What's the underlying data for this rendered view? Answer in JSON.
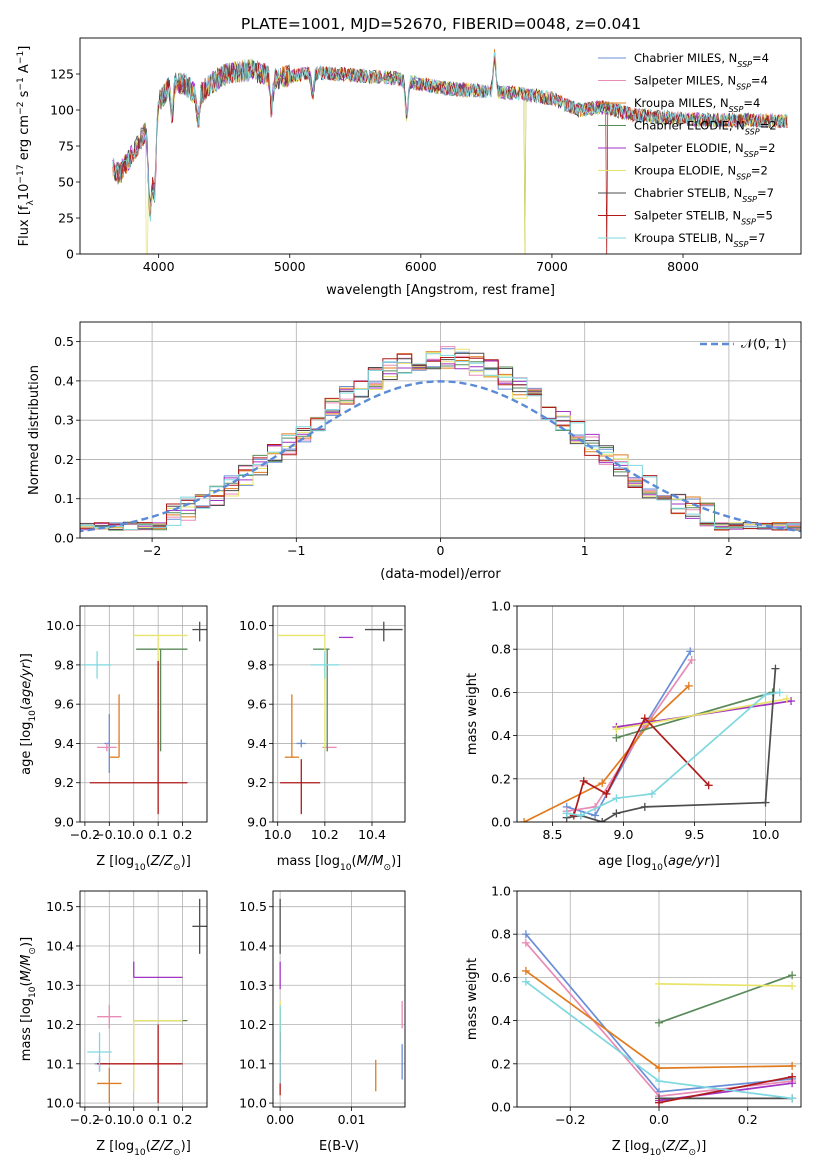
{
  "figure_title": "PLATE=1001, MJD=52670, FIBERID=0048, z=0.041",
  "series_names": [
    "Chabrier MILES, N_SSP=4",
    "Salpeter MILES, N_SSP=4",
    "Kroupa MILES, N_SSP=4",
    "Chabrier ELODIE, N_SSP=2",
    "Salpeter ELODIE, N_SSP=2",
    "Kroupa ELODIE, N_SSP=2",
    "Chabrier STELIB, N_SSP=7",
    "Salpeter STELIB, N_SSP=5",
    "Kroupa STELIB, N_SSP=7"
  ],
  "legend": {
    "spectrum": [
      {
        "prefix": "Chabrier MILES, N",
        "sub": "SSP",
        "suffix": "=4",
        "color": "#6a8fd6"
      },
      {
        "prefix": "Salpeter MILES, N",
        "sub": "SSP",
        "suffix": "=4",
        "color": "#e88bb6"
      },
      {
        "prefix": "Kroupa MILES, N",
        "sub": "SSP",
        "suffix": "=4",
        "color": "#e07b1f"
      },
      {
        "prefix": "Chabrier ELODIE, N",
        "sub": "SSP",
        "suffix": "=2",
        "color": "#5a8a5a"
      },
      {
        "prefix": "Salpeter ELODIE, N",
        "sub": "SSP",
        "suffix": "=2",
        "color": "#a233c4"
      },
      {
        "prefix": "Kroupa ELODIE, N",
        "sub": "SSP",
        "suffix": "=2",
        "color": "#e8e36a"
      },
      {
        "prefix": "Chabrier STELIB, N",
        "sub": "SSP",
        "suffix": "=7",
        "color": "#4d4d4d"
      },
      {
        "prefix": "Salpeter STELIB, N",
        "sub": "SSP",
        "suffix": "=5",
        "color": "#b01a1a"
      },
      {
        "prefix": "Kroupa STELIB, N",
        "sub": "SSP",
        "suffix": "=7",
        "color": "#7fd8df"
      }
    ],
    "histogram": "𝒩(0, 1)"
  },
  "colors": [
    "#6a8fd6",
    "#e88bb6",
    "#e07b1f",
    "#5a8a5a",
    "#a233c4",
    "#e8e36a",
    "#4d4d4d",
    "#b01a1a",
    "#7fd8df"
  ],
  "chart_data": [
    {
      "id": "spectrum",
      "type": "line",
      "xlabel": "wavelength [Angstrom, rest frame]",
      "ylabel": "Flux [f_λ 10^-17 erg cm^-2 s^-1 A^-1]",
      "xlim": [
        3400,
        8900
      ],
      "ylim": [
        0,
        150
      ],
      "xticks": [
        4000,
        5000,
        6000,
        7000,
        8000
      ],
      "yticks": [
        0,
        25,
        50,
        75,
        100,
        125
      ],
      "grid": false,
      "continuum_x": [
        3650,
        3700,
        3800,
        3900,
        3950,
        4000,
        4100,
        4200,
        4300,
        4400,
        4500,
        4700,
        4900,
        5200,
        5500,
        5800,
        6000,
        6200,
        6500,
        6800,
        7000,
        7200,
        7400,
        7600,
        7800,
        8000,
        8200,
        8500,
        8800
      ],
      "continuum_y": [
        60,
        55,
        70,
        85,
        60,
        105,
        120,
        118,
        110,
        118,
        125,
        128,
        122,
        126,
        124,
        122,
        118,
        115,
        113,
        111,
        108,
        100,
        102,
        97,
        95,
        94,
        93,
        93,
        92
      ]
    },
    {
      "id": "histogram",
      "type": "area",
      "xlabel": "(data-model)/error",
      "ylabel": "Normed distribution",
      "xlim": [
        -2.5,
        2.5
      ],
      "ylim": [
        0,
        0.55
      ],
      "xticks": [
        -2,
        -1,
        0,
        1,
        2
      ],
      "yticks": [
        0.0,
        0.1,
        0.2,
        0.3,
        0.4,
        0.5
      ],
      "grid": true,
      "bin_width": 0.1,
      "reference_curve": "normal(0,1)"
    },
    {
      "id": "age-vs-z",
      "type": "scatter",
      "xlabel": "Z [log10(Z/Z☉)]",
      "ylabel": "age  [log10(age/yr)]",
      "xlim": [
        -0.22,
        0.3
      ],
      "ylim": [
        9.0,
        10.1
      ],
      "xticks": [
        -0.2,
        -0.1,
        0.0,
        0.1,
        0.2
      ],
      "yticks": [
        9.0,
        9.2,
        9.4,
        9.6,
        9.8,
        10.0
      ],
      "grid": true,
      "points": [
        {
          "x": -0.1,
          "xerr": [
            0.02,
            0.0
          ],
          "y": 9.4,
          "yerr": [
            0.15,
            0.15
          ],
          "c": 0
        },
        {
          "x": -0.11,
          "xerr": [
            0.04,
            0.04
          ],
          "y": 9.38,
          "yerr": [
            0.02,
            0.02
          ],
          "c": 1
        },
        {
          "x": -0.06,
          "xerr": [
            0.04,
            0.0
          ],
          "y": 9.33,
          "yerr": [
            0.0,
            0.32
          ],
          "c": 2
        },
        {
          "x": 0.11,
          "xerr": [
            0.1,
            0.11
          ],
          "y": 9.88,
          "yerr": [
            0.52,
            0.0
          ],
          "c": 3
        },
        {
          "x": 0.1,
          "xerr": [
            0.1,
            0.12
          ],
          "y": 9.95,
          "yerr": [
            0.58,
            0.0
          ],
          "c": 5
        },
        {
          "x": 0.27,
          "xerr": [
            0.03,
            0.03
          ],
          "y": 9.98,
          "yerr": [
            0.06,
            0.04
          ],
          "c": 6
        },
        {
          "x": 0.1,
          "xerr": [
            0.28,
            0.12
          ],
          "y": 9.2,
          "yerr": [
            0.16,
            0.62
          ],
          "c": 7
        },
        {
          "x": -0.15,
          "xerr": [
            0.06,
            0.06
          ],
          "y": 9.8,
          "yerr": [
            0.07,
            0.07
          ],
          "c": 8
        }
      ]
    },
    {
      "id": "age-vs-mass",
      "type": "scatter",
      "xlabel": "mass [log10(M/M☉)]",
      "ylabel": "",
      "xlim": [
        9.98,
        10.54
      ],
      "ylim": [
        9.0,
        10.1
      ],
      "xticks": [
        10.0,
        10.2,
        10.4
      ],
      "yticks": [
        9.0,
        9.2,
        9.4,
        9.6,
        9.8,
        10.0
      ],
      "grid": true,
      "points": [
        {
          "x": 10.1,
          "xerr": [
            0.02,
            0.02
          ],
          "y": 9.4,
          "yerr": [
            0.02,
            0.02
          ],
          "c": 0
        },
        {
          "x": 10.21,
          "xerr": [
            0.02,
            0.04
          ],
          "y": 9.38,
          "yerr": [
            0.02,
            0.02
          ],
          "c": 1
        },
        {
          "x": 10.06,
          "xerr": [
            0.03,
            0.03
          ],
          "y": 9.33,
          "yerr": [
            0.0,
            0.32
          ],
          "c": 2
        },
        {
          "x": 10.21,
          "xerr": [
            0.06,
            0.01
          ],
          "y": 9.88,
          "yerr": [
            0.52,
            0.0
          ],
          "c": 3
        },
        {
          "x": 10.32,
          "xerr": [
            0.06,
            0.0
          ],
          "y": 9.94,
          "yerr": [
            0.0,
            0.0
          ],
          "c": 4
        },
        {
          "x": 10.2,
          "xerr": [
            0.2,
            0.0
          ],
          "y": 9.95,
          "yerr": [
            0.58,
            0.0
          ],
          "c": 5
        },
        {
          "x": 10.45,
          "xerr": [
            0.08,
            0.08
          ],
          "y": 9.98,
          "yerr": [
            0.06,
            0.04
          ],
          "c": 6
        },
        {
          "x": 10.1,
          "xerr": [
            0.09,
            0.08
          ],
          "y": 9.2,
          "yerr": [
            0.16,
            0.12
          ],
          "c": 7
        },
        {
          "x": 10.2,
          "xerr": [
            0.06,
            0.06
          ],
          "y": 9.8,
          "yerr": [
            0.07,
            0.07
          ],
          "c": 8
        }
      ]
    },
    {
      "id": "weight-vs-age",
      "type": "line",
      "xlabel": "age  [log10(age/yr)]",
      "ylabel": "mass weight",
      "xlim": [
        8.25,
        10.25
      ],
      "ylim": [
        0,
        1
      ],
      "xticks": [
        8.5,
        9.0,
        9.5,
        10.0
      ],
      "yticks": [
        0.0,
        0.2,
        0.4,
        0.6,
        0.8,
        1.0
      ],
      "grid": true,
      "series": [
        {
          "c": 0,
          "x": [
            8.6,
            8.8,
            9.15,
            9.47
          ],
          "y": [
            0.07,
            0.03,
            0.45,
            0.79
          ]
        },
        {
          "c": 1,
          "x": [
            8.6,
            8.8,
            9.15,
            9.48
          ],
          "y": [
            0.05,
            0.07,
            0.44,
            0.75
          ]
        },
        {
          "c": 2,
          "x": [
            8.3,
            8.85,
            9.2,
            9.46
          ],
          "y": [
            0.0,
            0.18,
            0.47,
            0.63
          ]
        },
        {
          "c": 3,
          "x": [
            8.95,
            10.05
          ],
          "y": [
            0.39,
            0.6
          ]
        },
        {
          "c": 4,
          "x": [
            8.95,
            10.18
          ],
          "y": [
            0.44,
            0.56
          ]
        },
        {
          "c": 5,
          "x": [
            8.95,
            10.15
          ],
          "y": [
            0.43,
            0.57
          ]
        },
        {
          "c": 6,
          "x": [
            8.6,
            8.7,
            8.85,
            8.95,
            9.15,
            10.0,
            10.07
          ],
          "y": [
            0.02,
            0.03,
            0.0,
            0.04,
            0.07,
            0.09,
            0.71
          ]
        },
        {
          "c": 7,
          "x": [
            8.65,
            8.72,
            8.88,
            9.15,
            9.6
          ],
          "y": [
            0.03,
            0.19,
            0.13,
            0.48,
            0.17
          ]
        },
        {
          "c": 8,
          "x": [
            8.6,
            8.7,
            8.95,
            9.2,
            10.0,
            10.1
          ],
          "y": [
            0.04,
            0.03,
            0.11,
            0.13,
            0.59,
            0.6
          ]
        }
      ]
    },
    {
      "id": "mass-vs-z",
      "type": "scatter",
      "xlabel": "Z [log10(Z/Z☉)]",
      "ylabel": "mass [log10(M/M☉)]",
      "xlim": [
        -0.22,
        0.3
      ],
      "ylim": [
        9.99,
        10.54
      ],
      "xticks": [
        -0.2,
        -0.1,
        0.0,
        0.1,
        0.2
      ],
      "yticks": [
        10.0,
        10.1,
        10.2,
        10.3,
        10.4,
        10.5
      ],
      "grid": true,
      "points": [
        {
          "x": -0.14,
          "xerr": [
            0.02,
            0.03
          ],
          "y": 10.1,
          "yerr": [
            0.02,
            0.02
          ],
          "c": 0
        },
        {
          "x": -0.1,
          "xerr": [
            0.05,
            0.05
          ],
          "y": 10.22,
          "yerr": [
            0.03,
            0.03
          ],
          "c": 1
        },
        {
          "x": -0.1,
          "xerr": [
            0.05,
            0.05
          ],
          "y": 10.05,
          "yerr": [
            0.05,
            0.04
          ],
          "c": 2
        },
        {
          "x": 0.0,
          "xerr": [
            0.0,
            0.22
          ],
          "y": 10.21,
          "yerr": [
            0.0,
            0.0
          ],
          "c": 3
        },
        {
          "x": 0.0,
          "xerr": [
            0.0,
            0.2
          ],
          "y": 10.32,
          "yerr": [
            0.0,
            0.04
          ],
          "c": 4
        },
        {
          "x": 0.0,
          "xerr": [
            0.0,
            0.2
          ],
          "y": 10.21,
          "yerr": [
            0.18,
            0.0
          ],
          "c": 5
        },
        {
          "x": 0.27,
          "xerr": [
            0.03,
            0.03
          ],
          "y": 10.45,
          "yerr": [
            0.07,
            0.07
          ],
          "c": 6
        },
        {
          "x": 0.1,
          "xerr": [
            0.25,
            0.1
          ],
          "y": 10.1,
          "yerr": [
            0.1,
            0.1
          ],
          "c": 7
        },
        {
          "x": -0.14,
          "xerr": [
            0.05,
            0.05
          ],
          "y": 10.13,
          "yerr": [
            0.05,
            0.05
          ],
          "c": 8
        }
      ]
    },
    {
      "id": "mass-vs-ebv",
      "type": "scatter",
      "xlabel": "E(B-V)",
      "ylabel": "",
      "xlim": [
        -0.001,
        0.0175
      ],
      "ylim": [
        9.99,
        10.54
      ],
      "xticks": [
        0.0,
        0.01
      ],
      "yticks": [
        10.0,
        10.1,
        10.2,
        10.3,
        10.4,
        10.5
      ],
      "grid": true,
      "points": [
        {
          "x": 0.0171,
          "xerr": [
            0,
            0
          ],
          "y": 10.1,
          "yerr": [
            0.04,
            0.05
          ],
          "c": 0
        },
        {
          "x": 0.0171,
          "xerr": [
            0,
            0
          ],
          "y": 10.22,
          "yerr": [
            0.03,
            0.04
          ],
          "c": 1
        },
        {
          "x": 0.0134,
          "xerr": [
            0,
            0
          ],
          "y": 10.07,
          "yerr": [
            0.04,
            0.04
          ],
          "c": 2
        },
        {
          "x": 0.0,
          "xerr": [
            0,
            0
          ],
          "y": 10.21,
          "yerr": [
            0.08,
            0.03
          ],
          "c": 3
        },
        {
          "x": 0.0,
          "xerr": [
            0,
            0
          ],
          "y": 10.32,
          "yerr": [
            0.03,
            0.04
          ],
          "c": 4
        },
        {
          "x": 0.0,
          "xerr": [
            0,
            0
          ],
          "y": 10.21,
          "yerr": [
            0.05,
            0.05
          ],
          "c": 5
        },
        {
          "x": 0.0,
          "xerr": [
            0,
            0
          ],
          "y": 10.45,
          "yerr": [
            0.07,
            0.07
          ],
          "c": 6
        },
        {
          "x": 0.0,
          "xerr": [
            0,
            0
          ],
          "y": 10.1,
          "yerr": [
            0.08,
            0.08
          ],
          "c": 7
        },
        {
          "x": 0.0,
          "xerr": [
            0,
            0
          ],
          "y": 10.15,
          "yerr": [
            0.1,
            0.1
          ],
          "c": 8
        }
      ]
    },
    {
      "id": "weight-vs-z",
      "type": "line",
      "xlabel": "Z [log10(Z/Z☉)]",
      "ylabel": "mass weight",
      "xlim": [
        -0.32,
        0.32
      ],
      "ylim": [
        0,
        1
      ],
      "xticks": [
        -0.2,
        0.0,
        0.2
      ],
      "yticks": [
        0.0,
        0.2,
        0.4,
        0.6,
        0.8,
        1.0
      ],
      "grid": true,
      "series": [
        {
          "c": 0,
          "x": [
            -0.3,
            0.0,
            0.3
          ],
          "y": [
            0.8,
            0.07,
            0.13
          ]
        },
        {
          "c": 1,
          "x": [
            -0.3,
            0.0,
            0.3
          ],
          "y": [
            0.76,
            0.05,
            0.12
          ]
        },
        {
          "c": 2,
          "x": [
            -0.3,
            0.0,
            0.3
          ],
          "y": [
            0.63,
            0.18,
            0.19
          ]
        },
        {
          "c": 3,
          "x": [
            0.0,
            0.3
          ],
          "y": [
            0.39,
            0.61
          ]
        },
        {
          "c": 4,
          "x": [
            0.0,
            0.3
          ],
          "y": [
            0.03,
            0.11
          ]
        },
        {
          "c": 5,
          "x": [
            0.0,
            0.3
          ],
          "y": [
            0.57,
            0.56
          ]
        },
        {
          "c": 6,
          "x": [
            0.0,
            0.3
          ],
          "y": [
            0.04,
            0.04
          ]
        },
        {
          "c": 7,
          "x": [
            0.0,
            0.3
          ],
          "y": [
            0.02,
            0.14
          ]
        },
        {
          "c": 8,
          "x": [
            -0.3,
            0.0,
            0.3
          ],
          "y": [
            0.58,
            0.12,
            0.04
          ]
        }
      ]
    }
  ]
}
